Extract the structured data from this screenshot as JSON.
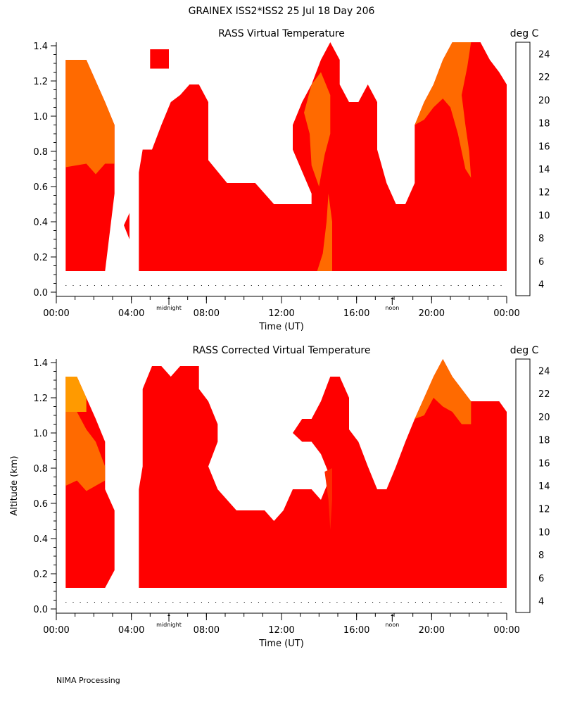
{
  "header": {
    "title": "GRAINEX ISS2*ISS2  25 Jul 18 Day 206"
  },
  "footer": {
    "text": "NIMA Processing"
  },
  "colors": {
    "red": "#ff0000",
    "red_orange": "#ff2a00",
    "orange": "#ff6a00",
    "light_orange": "#ff9a00"
  },
  "colorbar": {
    "title": "deg C",
    "levels": [
      4,
      6,
      8,
      10,
      12,
      14,
      16,
      18,
      20,
      22,
      24
    ],
    "colors": [
      "#000000",
      "#55005a",
      "#1a00ff",
      "#00a6ff",
      "#00e060",
      "#60e010",
      "#ffd000",
      "#ff9a00",
      "#ff6a00",
      "#ff2a00",
      "#ff0000"
    ]
  },
  "chart_data": [
    {
      "type": "heatmap",
      "title": "RASS Virtual Temperature",
      "xlabel": "Time (UT)",
      "ylabel": "",
      "x_ticks": [
        "00:00",
        "04:00",
        "08:00",
        "12:00",
        "16:00",
        "20:00",
        "00:00"
      ],
      "x_tick_values": [
        0,
        4,
        8,
        12,
        16,
        20,
        24
      ],
      "xlim": [
        0,
        24
      ],
      "y_ticks": [
        "0.0",
        "0.2",
        "0.4",
        "0.6",
        "0.8",
        "1.0",
        "1.2",
        "1.4"
      ],
      "y_tick_values": [
        0,
        0.2,
        0.4,
        0.6,
        0.8,
        1.0,
        1.2,
        1.4
      ],
      "ylim": [
        0,
        1.42
      ],
      "markers": [
        {
          "label": "midnight",
          "time": 6.0
        },
        {
          "label": "noon",
          "time": 17.9
        }
      ],
      "units": "deg C",
      "regions": [
        {
          "value": 24,
          "color": "red",
          "points": [
            [
              0.5,
              0.12
            ],
            [
              0.5,
              1.32
            ],
            [
              1.6,
              1.32
            ],
            [
              2.1,
              1.2
            ],
            [
              2.6,
              1.08
            ],
            [
              3.1,
              0.95
            ],
            [
              3.1,
              0.56
            ],
            [
              2.6,
              0.12
            ]
          ]
        },
        {
          "value": 24,
          "color": "red",
          "points": [
            [
              3.6,
              0.38
            ],
            [
              3.9,
              0.45
            ],
            [
              3.9,
              0.3
            ]
          ]
        },
        {
          "value": 24,
          "color": "red",
          "points": [
            [
              4.4,
              0.12
            ],
            [
              4.4,
              0.68
            ],
            [
              4.6,
              0.81
            ],
            [
              5.1,
              0.81
            ],
            [
              5.6,
              0.95
            ],
            [
              6.1,
              1.08
            ],
            [
              6.6,
              1.12
            ],
            [
              7.1,
              1.18
            ],
            [
              7.6,
              1.18
            ],
            [
              8.1,
              1.08
            ],
            [
              8.1,
              0.75
            ],
            [
              9.1,
              0.62
            ],
            [
              10.6,
              0.62
            ],
            [
              11.6,
              0.5
            ],
            [
              13.6,
              0.5
            ],
            [
              13.6,
              0.56
            ],
            [
              12.6,
              0.81
            ],
            [
              12.6,
              0.95
            ],
            [
              13.1,
              1.08
            ],
            [
              13.6,
              1.18
            ],
            [
              14.1,
              1.32
            ],
            [
              14.6,
              1.42
            ],
            [
              15.1,
              1.32
            ],
            [
              15.1,
              1.18
            ],
            [
              15.6,
              1.08
            ],
            [
              16.1,
              1.08
            ],
            [
              16.6,
              1.18
            ],
            [
              17.1,
              1.08
            ],
            [
              17.1,
              0.81
            ],
            [
              17.6,
              0.62
            ],
            [
              18.1,
              0.5
            ],
            [
              18.6,
              0.5
            ],
            [
              19.1,
              0.62
            ],
            [
              19.1,
              0.95
            ],
            [
              19.6,
              1.08
            ],
            [
              20.1,
              1.18
            ],
            [
              20.6,
              1.32
            ],
            [
              21.1,
              1.42
            ],
            [
              22.6,
              1.42
            ],
            [
              23.1,
              1.32
            ],
            [
              23.6,
              1.25
            ],
            [
              24.0,
              1.18
            ],
            [
              24.0,
              0.95
            ],
            [
              24.0,
              0.12
            ]
          ]
        },
        {
          "value": 24,
          "color": "red",
          "points": [
            [
              5.0,
              1.27
            ],
            [
              6.0,
              1.27
            ],
            [
              6.0,
              1.38
            ],
            [
              5.0,
              1.38
            ]
          ]
        },
        {
          "value": 20,
          "color": "orange",
          "points": [
            [
              0.5,
              0.71
            ],
            [
              0.5,
              1.32
            ],
            [
              1.6,
              1.32
            ],
            [
              2.1,
              1.2
            ],
            [
              2.6,
              1.08
            ],
            [
              3.1,
              0.95
            ],
            [
              3.1,
              0.73
            ],
            [
              2.6,
              0.73
            ],
            [
              2.1,
              0.67
            ],
            [
              1.6,
              0.73
            ]
          ]
        },
        {
          "value": 20,
          "color": "orange",
          "points": [
            [
              13.2,
              1.02
            ],
            [
              13.6,
              1.18
            ],
            [
              14.1,
              1.25
            ],
            [
              14.6,
              1.12
            ],
            [
              14.6,
              0.9
            ],
            [
              14.3,
              0.78
            ],
            [
              14.0,
              0.6
            ],
            [
              13.6,
              0.72
            ],
            [
              13.5,
              0.9
            ]
          ]
        },
        {
          "value": 20,
          "color": "orange",
          "points": [
            [
              13.9,
              0.12
            ],
            [
              14.2,
              0.22
            ],
            [
              14.4,
              0.4
            ],
            [
              14.5,
              0.56
            ],
            [
              14.7,
              0.4
            ],
            [
              14.7,
              0.12
            ]
          ]
        },
        {
          "value": 20,
          "color": "orange",
          "points": [
            [
              19.1,
              0.95
            ],
            [
              19.6,
              1.08
            ],
            [
              20.1,
              1.18
            ],
            [
              20.6,
              1.32
            ],
            [
              21.1,
              1.42
            ],
            [
              22.1,
              1.42
            ],
            [
              21.9,
              1.28
            ],
            [
              21.6,
              1.12
            ],
            [
              21.8,
              0.95
            ],
            [
              22.0,
              0.8
            ],
            [
              22.1,
              0.65
            ],
            [
              21.8,
              0.7
            ],
            [
              21.4,
              0.9
            ],
            [
              21.0,
              1.05
            ],
            [
              20.6,
              1.1
            ],
            [
              20.1,
              1.05
            ],
            [
              19.6,
              0.98
            ]
          ]
        }
      ]
    },
    {
      "type": "heatmap",
      "title": "RASS Corrected Virtual Temperature",
      "xlabel": "Time (UT)",
      "ylabel": "Altitude (km)",
      "x_ticks": [
        "00:00",
        "04:00",
        "08:00",
        "12:00",
        "16:00",
        "20:00",
        "00:00"
      ],
      "x_tick_values": [
        0,
        4,
        8,
        12,
        16,
        20,
        24
      ],
      "xlim": [
        0,
        24
      ],
      "y_ticks": [
        "0.0",
        "0.2",
        "0.4",
        "0.6",
        "0.8",
        "1.0",
        "1.2",
        "1.4"
      ],
      "y_tick_values": [
        0,
        0.2,
        0.4,
        0.6,
        0.8,
        1.0,
        1.2,
        1.4
      ],
      "ylim": [
        0,
        1.42
      ],
      "markers": [
        {
          "label": "midnight",
          "time": 6.0
        },
        {
          "label": "noon",
          "time": 17.9
        }
      ],
      "units": "deg C",
      "regions": [
        {
          "value": 24,
          "color": "red",
          "points": [
            [
              0.5,
              0.12
            ],
            [
              0.5,
              1.32
            ],
            [
              1.1,
              1.32
            ],
            [
              1.6,
              1.2
            ],
            [
              2.1,
              1.08
            ],
            [
              2.6,
              0.95
            ],
            [
              2.6,
              0.68
            ],
            [
              3.1,
              0.56
            ],
            [
              3.1,
              0.22
            ],
            [
              2.6,
              0.12
            ]
          ]
        },
        {
          "value": 24,
          "color": "red",
          "points": [
            [
              4.4,
              0.12
            ],
            [
              4.4,
              0.68
            ],
            [
              4.6,
              0.81
            ],
            [
              4.6,
              1.25
            ],
            [
              5.1,
              1.38
            ],
            [
              5.6,
              1.38
            ],
            [
              6.1,
              1.32
            ],
            [
              6.6,
              1.38
            ],
            [
              7.6,
              1.38
            ],
            [
              7.6,
              1.25
            ],
            [
              8.1,
              1.18
            ],
            [
              8.6,
              1.05
            ],
            [
              8.6,
              0.95
            ],
            [
              8.1,
              0.81
            ],
            [
              8.6,
              0.68
            ],
            [
              9.6,
              0.56
            ],
            [
              11.1,
              0.56
            ],
            [
              11.6,
              0.5
            ],
            [
              12.1,
              0.56
            ],
            [
              12.6,
              0.68
            ],
            [
              13.6,
              0.68
            ],
            [
              14.1,
              0.62
            ],
            [
              14.6,
              0.75
            ],
            [
              14.1,
              0.88
            ],
            [
              13.6,
              0.95
            ],
            [
              13.1,
              0.95
            ],
            [
              12.6,
              1.0
            ],
            [
              13.1,
              1.08
            ],
            [
              13.6,
              1.08
            ],
            [
              14.1,
              1.18
            ],
            [
              14.6,
              1.32
            ],
            [
              15.1,
              1.32
            ],
            [
              15.6,
              1.2
            ],
            [
              15.6,
              1.02
            ],
            [
              16.1,
              0.95
            ],
            [
              16.6,
              0.81
            ],
            [
              17.1,
              0.68
            ],
            [
              17.6,
              0.68
            ],
            [
              18.1,
              0.81
            ],
            [
              18.6,
              0.95
            ],
            [
              19.1,
              1.08
            ],
            [
              19.6,
              1.2
            ],
            [
              20.1,
              1.32
            ],
            [
              20.6,
              1.42
            ],
            [
              21.1,
              1.32
            ],
            [
              21.6,
              1.25
            ],
            [
              22.1,
              1.18
            ],
            [
              22.6,
              1.18
            ],
            [
              23.6,
              1.18
            ],
            [
              24.0,
              1.12
            ],
            [
              24.0,
              0.12
            ]
          ]
        },
        {
          "value": 20,
          "color": "orange",
          "points": [
            [
              0.5,
              0.7
            ],
            [
              0.5,
              1.12
            ],
            [
              1.1,
              1.12
            ],
            [
              1.6,
              1.02
            ],
            [
              2.1,
              0.95
            ],
            [
              2.6,
              0.81
            ],
            [
              2.6,
              0.73
            ],
            [
              2.1,
              0.7
            ],
            [
              1.6,
              0.67
            ],
            [
              1.1,
              0.73
            ]
          ]
        },
        {
          "value": 18,
          "color": "light_orange",
          "points": [
            [
              0.5,
              1.12
            ],
            [
              0.5,
              1.32
            ],
            [
              1.1,
              1.32
            ],
            [
              1.6,
              1.2
            ],
            [
              1.6,
              1.12
            ]
          ]
        },
        {
          "value": 20,
          "color": "orange",
          "points": [
            [
              19.1,
              1.08
            ],
            [
              19.6,
              1.2
            ],
            [
              20.1,
              1.32
            ],
            [
              20.6,
              1.42
            ],
            [
              21.1,
              1.32
            ],
            [
              21.6,
              1.25
            ],
            [
              22.1,
              1.18
            ],
            [
              22.1,
              1.05
            ],
            [
              21.6,
              1.05
            ],
            [
              21.1,
              1.12
            ],
            [
              20.6,
              1.15
            ],
            [
              20.1,
              1.2
            ],
            [
              19.6,
              1.1
            ]
          ]
        },
        {
          "value": 22,
          "color": "red_orange",
          "points": [
            [
              14.3,
              0.78
            ],
            [
              14.5,
              0.62
            ],
            [
              14.6,
              0.45
            ],
            [
              14.7,
              0.62
            ],
            [
              14.7,
              0.8
            ]
          ]
        }
      ]
    }
  ]
}
